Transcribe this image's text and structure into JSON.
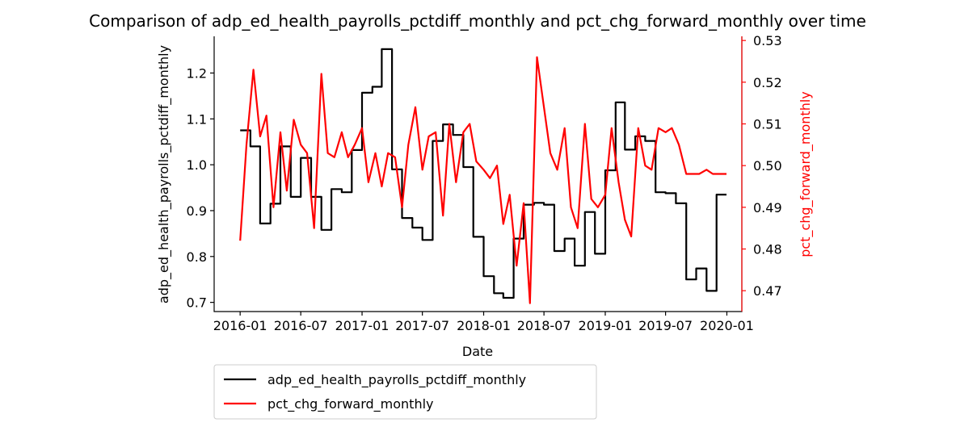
{
  "chart_data": {
    "type": "line",
    "title": "Comparison of adp_ed_health_payrolls_pctdiff_monthly and pct_chg_forward_monthly over time",
    "xlabel": "Date",
    "ylabel_left": "adp_ed_health_payrolls_pctdiff_monthly",
    "ylabel_right": "pct_chg_forward_monthly",
    "xlim": [
      "2015-10-15",
      "2020-02-15"
    ],
    "ylim_left": [
      0.68,
      1.28
    ],
    "ylim_right": [
      0.465,
      0.531
    ],
    "xticks": [
      "2016-01",
      "2016-07",
      "2017-01",
      "2017-07",
      "2018-01",
      "2018-07",
      "2019-01",
      "2019-07",
      "2020-01"
    ],
    "yticks_left": [
      "0.7",
      "0.8",
      "0.9",
      "1.0",
      "1.1",
      "1.2"
    ],
    "yticks_right": [
      "0.47",
      "0.48",
      "0.49",
      "0.50",
      "0.51",
      "0.52",
      "0.53"
    ],
    "legend_placement": "below-left",
    "grid": false,
    "series": [
      {
        "name": "adp_ed_health_payrolls_pctdiff_monthly",
        "axis": "left",
        "color": "#000000",
        "step": true,
        "x": [
          "2016-01-01",
          "2016-02-01",
          "2016-03-01",
          "2016-04-01",
          "2016-05-01",
          "2016-06-01",
          "2016-07-01",
          "2016-08-01",
          "2016-09-01",
          "2016-10-01",
          "2016-11-01",
          "2016-12-01",
          "2017-01-01",
          "2017-02-01",
          "2017-03-01",
          "2017-04-01",
          "2017-05-01",
          "2017-06-01",
          "2017-07-01",
          "2017-08-01",
          "2017-09-01",
          "2017-10-01",
          "2017-11-01",
          "2017-12-01",
          "2018-01-01",
          "2018-02-01",
          "2018-03-01",
          "2018-04-01",
          "2018-05-01",
          "2018-06-01",
          "2018-07-01",
          "2018-08-01",
          "2018-09-01",
          "2018-10-01",
          "2018-11-01",
          "2018-12-01",
          "2019-01-01",
          "2019-02-01",
          "2019-03-01",
          "2019-04-01",
          "2019-05-01",
          "2019-06-01",
          "2019-07-01",
          "2019-08-01",
          "2019-09-01",
          "2019-10-01",
          "2019-11-01",
          "2019-12-01",
          "2019-12-31"
        ],
        "values": [
          1.075,
          1.04,
          0.872,
          0.915,
          1.04,
          0.93,
          1.015,
          0.93,
          0.858,
          0.947,
          0.94,
          1.032,
          1.157,
          1.17,
          1.252,
          0.99,
          0.884,
          0.863,
          0.836,
          1.052,
          1.088,
          1.065,
          0.995,
          0.843,
          0.757,
          0.72,
          0.71,
          0.839,
          0.913,
          0.917,
          0.913,
          0.812,
          0.839,
          0.78,
          0.897,
          0.806,
          0.988,
          1.136,
          1.033,
          1.062,
          1.052,
          0.94,
          0.938,
          0.916,
          0.75,
          0.774,
          0.725,
          0.935,
          0.935
        ]
      },
      {
        "name": "pct_chg_forward_monthly",
        "axis": "right",
        "color": "#ff0000",
        "step": false,
        "x": [
          "2016-01-01",
          "2016-01-20",
          "2016-02-10",
          "2016-03-01",
          "2016-03-20",
          "2016-04-10",
          "2016-05-01",
          "2016-05-20",
          "2016-06-10",
          "2016-07-01",
          "2016-07-20",
          "2016-08-10",
          "2016-09-01",
          "2016-09-20",
          "2016-10-10",
          "2016-11-01",
          "2016-11-20",
          "2016-12-10",
          "2017-01-01",
          "2017-01-20",
          "2017-02-10",
          "2017-03-01",
          "2017-03-20",
          "2017-04-10",
          "2017-05-01",
          "2017-05-20",
          "2017-06-10",
          "2017-07-01",
          "2017-07-20",
          "2017-08-10",
          "2017-09-01",
          "2017-09-20",
          "2017-10-10",
          "2017-11-01",
          "2017-11-20",
          "2017-12-10",
          "2018-01-01",
          "2018-01-20",
          "2018-02-10",
          "2018-03-01",
          "2018-03-20",
          "2018-04-10",
          "2018-05-01",
          "2018-05-20",
          "2018-06-10",
          "2018-07-01",
          "2018-07-20",
          "2018-08-10",
          "2018-09-01",
          "2018-09-20",
          "2018-10-10",
          "2018-11-01",
          "2018-11-20",
          "2018-12-10",
          "2019-01-01",
          "2019-01-20",
          "2019-02-10",
          "2019-03-01",
          "2019-03-20",
          "2019-04-10",
          "2019-05-01",
          "2019-05-20",
          "2019-06-10",
          "2019-07-01",
          "2019-07-20",
          "2019-08-10",
          "2019-09-01",
          "2019-09-20",
          "2019-10-10",
          "2019-11-01",
          "2019-11-20",
          "2019-12-10",
          "2019-12-31"
        ],
        "values": [
          0.482,
          0.505,
          0.523,
          0.507,
          0.512,
          0.49,
          0.508,
          0.494,
          0.511,
          0.505,
          0.503,
          0.485,
          0.522,
          0.503,
          0.502,
          0.508,
          0.502,
          0.505,
          0.509,
          0.496,
          0.503,
          0.495,
          0.503,
          0.502,
          0.49,
          0.505,
          0.514,
          0.499,
          0.507,
          0.508,
          0.488,
          0.51,
          0.496,
          0.508,
          0.51,
          0.501,
          0.499,
          0.497,
          0.5,
          0.486,
          0.493,
          0.476,
          0.491,
          0.467,
          0.526,
          0.514,
          0.503,
          0.499,
          0.509,
          0.49,
          0.485,
          0.51,
          0.492,
          0.49,
          0.493,
          0.509,
          0.496,
          0.487,
          0.483,
          0.509,
          0.5,
          0.499,
          0.509,
          0.508,
          0.509,
          0.505,
          0.498,
          0.498,
          0.498,
          0.499,
          0.498,
          0.498,
          0.498
        ]
      }
    ]
  }
}
